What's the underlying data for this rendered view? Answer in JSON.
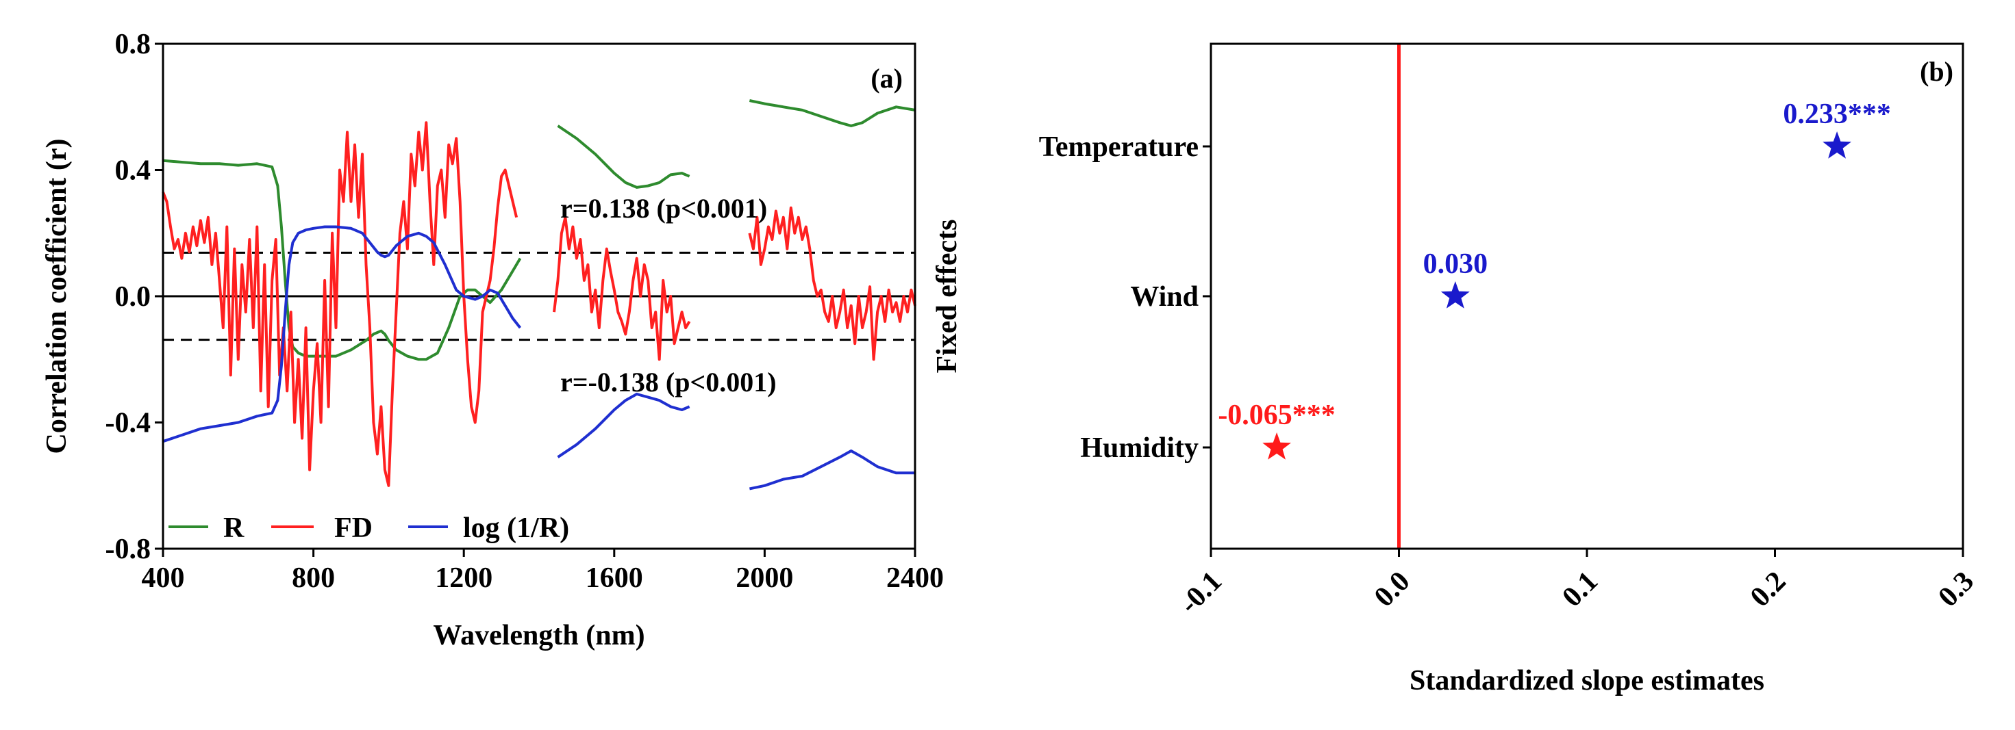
{
  "chart_data": [
    {
      "panel_label": "(a)",
      "type": "line",
      "xlabel": "Wavelength (nm)",
      "ylabel": "Correlation coefficient (r)",
      "xlim": [
        400,
        2400
      ],
      "ylim": [
        -0.8,
        0.8
      ],
      "x_ticks": [
        400,
        800,
        1200,
        1600,
        2000,
        2400
      ],
      "x_tick_labels": [
        "400",
        "800",
        "1200",
        "1600",
        "2000",
        "2400"
      ],
      "y_ticks": [
        0.8,
        0.4,
        0.0,
        -0.4,
        -0.8
      ],
      "y_tick_labels": [
        "0.8",
        "0.4",
        "0.0",
        "-0.4",
        "-0.8"
      ],
      "reference_lines": [
        {
          "y": 0.138,
          "style": "dashed",
          "label": "r=0.138 (p<0.001)"
        },
        {
          "y": -0.138,
          "style": "dashed",
          "label": "r=-0.138 (p<0.001)"
        },
        {
          "y": 0.0,
          "style": "solid",
          "label": ""
        }
      ],
      "legend": {
        "position": "bottom-left",
        "entries": [
          "R",
          "FD",
          "log (1/R)"
        ]
      },
      "series": [
        {
          "name": "R",
          "color": "#2e8b2e",
          "segments": [
            {
              "x": [
                400,
                450,
                500,
                550,
                600,
                650,
                690,
                705,
                715,
                725,
                735,
                745,
                760,
                780,
                800,
                830,
                860,
                900,
                940,
                960,
                980,
                990,
                1000,
                1020,
                1050,
                1080,
                1100,
                1130,
                1160,
                1190,
                1210,
                1230,
                1250,
                1270,
                1300,
                1330,
                1350
              ],
              "y": [
                0.43,
                0.425,
                0.42,
                0.42,
                0.415,
                0.42,
                0.41,
                0.35,
                0.22,
                0.05,
                -0.1,
                -0.16,
                -0.18,
                -0.19,
                -0.19,
                -0.19,
                -0.19,
                -0.17,
                -0.14,
                -0.12,
                -0.11,
                -0.12,
                -0.14,
                -0.17,
                -0.19,
                -0.2,
                -0.2,
                -0.18,
                -0.1,
                0.0,
                0.02,
                0.02,
                0.0,
                -0.02,
                0.02,
                0.08,
                0.12
              ]
            },
            {
              "x": [
                1450,
                1500,
                1550,
                1600,
                1630,
                1660,
                1690,
                1720,
                1750,
                1780,
                1800
              ],
              "y": [
                0.54,
                0.5,
                0.45,
                0.39,
                0.36,
                0.345,
                0.35,
                0.36,
                0.385,
                0.39,
                0.38
              ]
            },
            {
              "x": [
                1960,
                2000,
                2050,
                2100,
                2150,
                2200,
                2230,
                2260,
                2300,
                2350,
                2400
              ],
              "y": [
                0.62,
                0.61,
                0.6,
                0.59,
                0.57,
                0.55,
                0.54,
                0.55,
                0.58,
                0.6,
                0.59
              ]
            }
          ]
        },
        {
          "name": "FD",
          "color": "#ff2020",
          "segments": [
            {
              "x": [
                400,
                410,
                420,
                430,
                440,
                450,
                460,
                470,
                480,
                490,
                500,
                510,
                520,
                530,
                540,
                550,
                560,
                570,
                580,
                590,
                600,
                610,
                620,
                630,
                640,
                650,
                660,
                670,
                680,
                690,
                700,
                710,
                720,
                730,
                740,
                750,
                760,
                770,
                780,
                790,
                800,
                810,
                820,
                830,
                840,
                850,
                860,
                870,
                880,
                890,
                900,
                910,
                920,
                930,
                940,
                950,
                960,
                970,
                980,
                990,
                1000,
                1010,
                1020,
                1030,
                1040,
                1050,
                1060,
                1070,
                1080,
                1090,
                1100,
                1110,
                1120,
                1130,
                1140,
                1150,
                1160,
                1170,
                1180,
                1190,
                1200,
                1210,
                1220,
                1230,
                1240,
                1250,
                1260,
                1270,
                1280,
                1290,
                1300,
                1310,
                1320,
                1330,
                1340
              ],
              "y": [
                0.33,
                0.3,
                0.22,
                0.15,
                0.18,
                0.12,
                0.2,
                0.14,
                0.22,
                0.16,
                0.24,
                0.17,
                0.25,
                0.1,
                0.2,
                0.05,
                -0.1,
                0.22,
                -0.25,
                0.15,
                -0.2,
                0.1,
                -0.05,
                0.18,
                -0.1,
                0.22,
                -0.3,
                0.1,
                -0.35,
                0.05,
                0.18,
                -0.25,
                -0.1,
                -0.3,
                -0.05,
                -0.4,
                -0.2,
                -0.45,
                -0.1,
                -0.55,
                -0.3,
                -0.15,
                -0.4,
                0.05,
                -0.35,
                0.2,
                -0.1,
                0.4,
                0.3,
                0.52,
                0.3,
                0.48,
                0.25,
                0.45,
                0.1,
                -0.1,
                -0.4,
                -0.5,
                -0.35,
                -0.55,
                -0.6,
                -0.3,
                -0.05,
                0.2,
                0.3,
                0.15,
                0.45,
                0.35,
                0.52,
                0.4,
                0.55,
                0.3,
                0.1,
                0.35,
                0.4,
                0.25,
                0.48,
                0.42,
                0.5,
                0.3,
                0.0,
                -0.2,
                -0.35,
                -0.4,
                -0.3,
                -0.05,
                0.0,
                0.05,
                0.15,
                0.28,
                0.38,
                0.4,
                0.35,
                0.3,
                0.25
              ]
            },
            {
              "x": [
                1440,
                1450,
                1460,
                1470,
                1480,
                1490,
                1500,
                1510,
                1520,
                1530,
                1540,
                1550,
                1560,
                1570,
                1580,
                1590,
                1600,
                1610,
                1620,
                1630,
                1640,
                1650,
                1660,
                1670,
                1680,
                1690,
                1700,
                1710,
                1720,
                1730,
                1740,
                1750,
                1760,
                1770,
                1780,
                1790,
                1800
              ],
              "y": [
                -0.05,
                0.05,
                0.2,
                0.25,
                0.15,
                0.22,
                0.12,
                0.18,
                0.05,
                0.1,
                -0.05,
                0.02,
                -0.1,
                0.05,
                0.15,
                0.08,
                0.02,
                -0.05,
                -0.08,
                -0.12,
                -0.05,
                0.05,
                0.12,
                0.0,
                0.1,
                0.05,
                -0.1,
                -0.05,
                -0.2,
                0.05,
                -0.05,
                0.0,
                -0.15,
                -0.1,
                -0.05,
                -0.1,
                -0.08
              ]
            },
            {
              "x": [
                1960,
                1970,
                1980,
                1990,
                2000,
                2010,
                2020,
                2030,
                2040,
                2050,
                2060,
                2070,
                2080,
                2090,
                2100,
                2110,
                2120,
                2130,
                2140,
                2150,
                2160,
                2170,
                2180,
                2190,
                2200,
                2210,
                2220,
                2230,
                2240,
                2250,
                2260,
                2270,
                2280,
                2290,
                2300,
                2310,
                2320,
                2330,
                2340,
                2350,
                2360,
                2370,
                2380,
                2390,
                2400
              ],
              "y": [
                0.2,
                0.15,
                0.25,
                0.1,
                0.15,
                0.22,
                0.18,
                0.27,
                0.2,
                0.25,
                0.15,
                0.28,
                0.2,
                0.25,
                0.18,
                0.22,
                0.15,
                0.05,
                0.0,
                0.02,
                -0.05,
                -0.08,
                0.0,
                -0.1,
                -0.05,
                0.02,
                -0.1,
                -0.03,
                -0.15,
                0.0,
                -0.1,
                -0.05,
                0.03,
                -0.2,
                -0.05,
                0.0,
                -0.08,
                0.02,
                -0.05,
                -0.02,
                -0.08,
                0.0,
                -0.05,
                0.02,
                -0.03
              ]
            }
          ]
        },
        {
          "name": "log (1/R)",
          "color": "#1f2fd0",
          "segments": [
            {
              "x": [
                400,
                450,
                500,
                550,
                600,
                650,
                690,
                705,
                715,
                725,
                735,
                745,
                760,
                780,
                800,
                830,
                860,
                900,
                930,
                950,
                970,
                980,
                990,
                1000,
                1020,
                1050,
                1080,
                1100,
                1120,
                1150,
                1180,
                1200,
                1230,
                1250,
                1270,
                1290,
                1310,
                1330,
                1350
              ],
              "y": [
                -0.46,
                -0.44,
                -0.42,
                -0.41,
                -0.4,
                -0.38,
                -0.37,
                -0.33,
                -0.22,
                -0.05,
                0.1,
                0.17,
                0.2,
                0.21,
                0.215,
                0.22,
                0.22,
                0.215,
                0.2,
                0.17,
                0.14,
                0.13,
                0.125,
                0.13,
                0.16,
                0.19,
                0.2,
                0.19,
                0.17,
                0.1,
                0.02,
                0.0,
                -0.01,
                0.0,
                0.02,
                0.01,
                -0.03,
                -0.07,
                -0.1
              ]
            },
            {
              "x": [
                1450,
                1500,
                1550,
                1600,
                1630,
                1660,
                1690,
                1720,
                1750,
                1780,
                1800
              ],
              "y": [
                -0.51,
                -0.47,
                -0.42,
                -0.36,
                -0.33,
                -0.31,
                -0.32,
                -0.33,
                -0.35,
                -0.36,
                -0.35
              ]
            },
            {
              "x": [
                1960,
                2000,
                2050,
                2100,
                2150,
                2200,
                2230,
                2260,
                2300,
                2350,
                2400
              ],
              "y": [
                -0.61,
                -0.6,
                -0.58,
                -0.57,
                -0.54,
                -0.51,
                -0.49,
                -0.51,
                -0.54,
                -0.56,
                -0.56
              ]
            }
          ]
        }
      ]
    },
    {
      "panel_label": "(b)",
      "type": "scatter",
      "xlabel": "Standardized slope estimates",
      "ylabel": "Fixed effects",
      "xlim": [
        -0.1,
        0.3
      ],
      "x_ticks": [
        -0.1,
        0.0,
        0.1,
        0.2,
        0.3
      ],
      "x_tick_labels": [
        "-0.1",
        "0.0",
        "0.1",
        "0.2",
        "0.3"
      ],
      "categories": [
        "Temperature",
        "Wind",
        "Humidity"
      ],
      "reference_line": {
        "x": 0.0,
        "color": "#ff1a1a"
      },
      "points": [
        {
          "category": "Temperature",
          "value": 0.233,
          "label": "0.233***",
          "color": "#1a1acc"
        },
        {
          "category": "Wind",
          "value": 0.03,
          "label": "0.030",
          "color": "#1a1acc"
        },
        {
          "category": "Humidity",
          "value": -0.065,
          "label": "-0.065***",
          "color": "#ff1a1a"
        }
      ]
    }
  ]
}
